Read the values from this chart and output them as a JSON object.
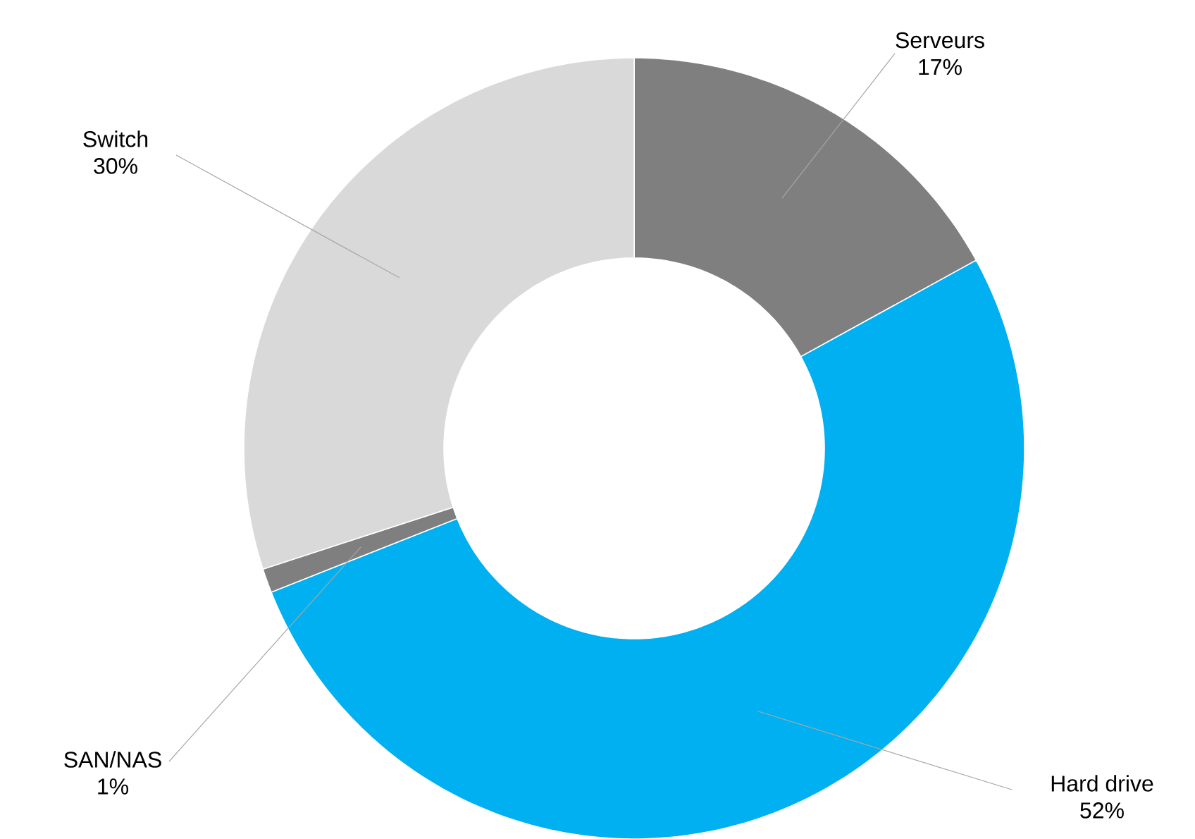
{
  "chart_data": {
    "type": "donut",
    "categories": [
      "Serveurs",
      "Hard drive",
      "SAN/NAS",
      "Switch"
    ],
    "values": [
      17,
      52,
      1,
      30
    ],
    "value_labels": [
      "17%",
      "52%",
      "1%",
      "30%"
    ],
    "colors": [
      "#7f7f7f",
      "#00b0f0",
      "#7f7f7f",
      "#d9d9d9"
    ]
  }
}
